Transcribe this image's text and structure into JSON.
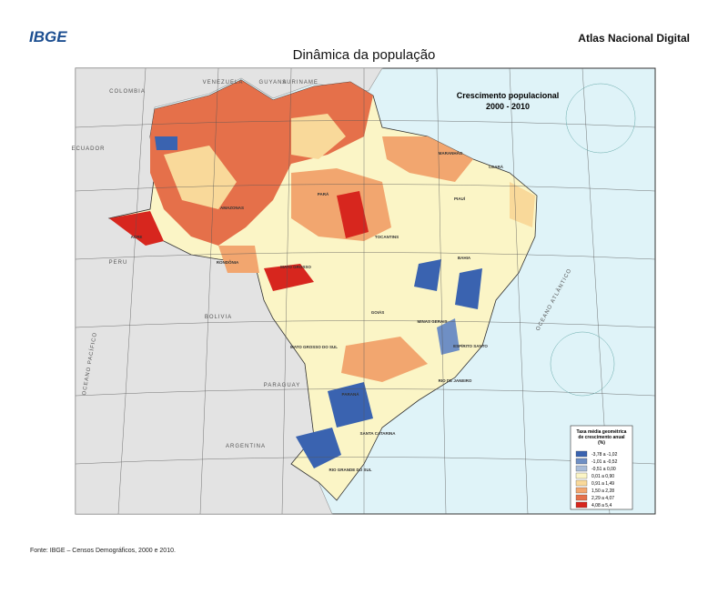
{
  "header": {
    "logo": "IBGE",
    "atlas": "Atlas Nacional Digital",
    "title": "Dinâmica da população"
  },
  "map": {
    "title_line1": "Crescimento populacional",
    "title_line2": "2000 - 2010",
    "countries": [
      "COLOMBIA",
      "VENEZUELA",
      "GUYANA",
      "SURINAME",
      "PERU",
      "BOLIVIA",
      "PARAGUAY",
      "ARGENTINA",
      "ECUADOR"
    ],
    "oceans": [
      "OCEANO ATLÂNTICO",
      "OCEANO PACÍFICO"
    ],
    "states": [
      "AMAZONAS",
      "PARÁ",
      "ACRE",
      "RONDÔNIA",
      "MATO GROSSO",
      "TOCANTINS",
      "BAHIA",
      "GOIÁS",
      "MINAS GERAIS",
      "ESPÍRITO SANTO",
      "MATO GROSSO DO SUL",
      "RIO DE JANEIRO",
      "PARANÁ",
      "SANTA CATARINA",
      "RIO GRANDE DO SUL",
      "MARANHÃO",
      "CEARÁ",
      "PIAUÍ"
    ]
  },
  "legend": {
    "title": "Taxa média geométrica de crescimento anual (%)",
    "items": [
      {
        "label": "-3,78 a -1,02",
        "color": "#3a63b0"
      },
      {
        "label": "-1,01 a -0,52",
        "color": "#6f8fc4"
      },
      {
        "label": "-0,51 a 0,00",
        "color": "#a9bcd8"
      },
      {
        "label": "0,01 a 0,90",
        "color": "#fbf5c6"
      },
      {
        "label": "0,91 a 1,49",
        "color": "#f9d99a"
      },
      {
        "label": "1,50 a 2,28",
        "color": "#f2a66f"
      },
      {
        "label": "2,29 a 4,07",
        "color": "#e5704a"
      },
      {
        "label": "4,08 a 5,4",
        "color": "#d7261e"
      }
    ]
  },
  "source": "Fonte: IBGE – Censos Demográficos, 2000 e 2010."
}
